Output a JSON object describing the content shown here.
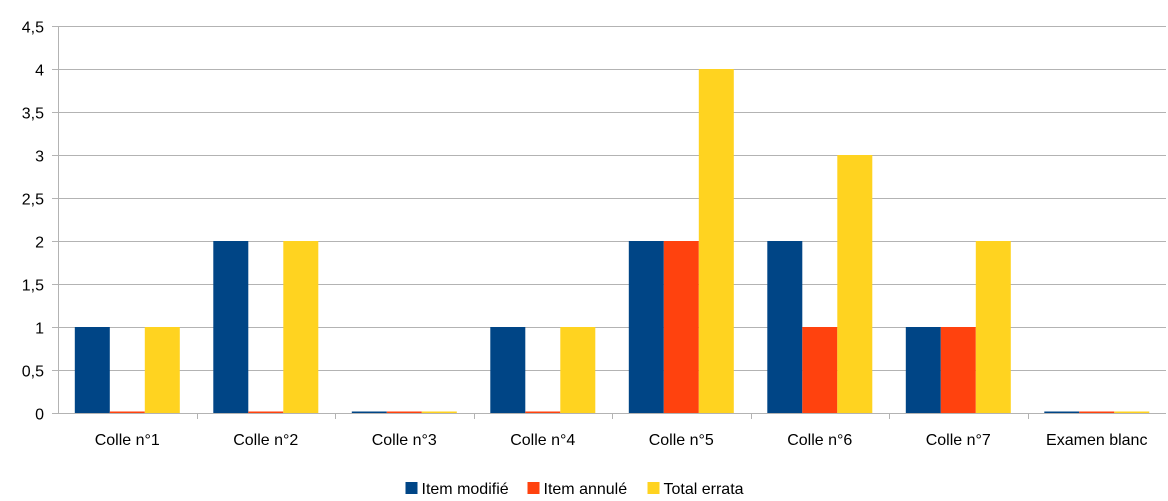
{
  "chart_data": {
    "type": "bar",
    "categories": [
      "Colle n°1",
      "Colle n°2",
      "Colle n°3",
      "Colle n°4",
      "Colle n°5",
      "Colle n°6",
      "Colle n°7",
      "Examen blanc"
    ],
    "series": [
      {
        "name": "Item modifié",
        "color": "#004586",
        "values": [
          1,
          2,
          0,
          1,
          2,
          2,
          1,
          0
        ]
      },
      {
        "name": "Item annulé",
        "color": "#ff420e",
        "values": [
          0,
          0,
          0,
          0,
          2,
          1,
          1,
          0
        ]
      },
      {
        "name": "Total errata",
        "color": "#ffd320",
        "values": [
          1,
          2,
          0,
          1,
          4,
          3,
          2,
          0
        ]
      }
    ],
    "yticks": [
      "0",
      "0,5",
      "1",
      "1,5",
      "2",
      "2,5",
      "3",
      "3,5",
      "4",
      "4,5"
    ],
    "ylim": [
      0,
      4.5
    ],
    "grid": true,
    "legend_position": "bottom"
  }
}
